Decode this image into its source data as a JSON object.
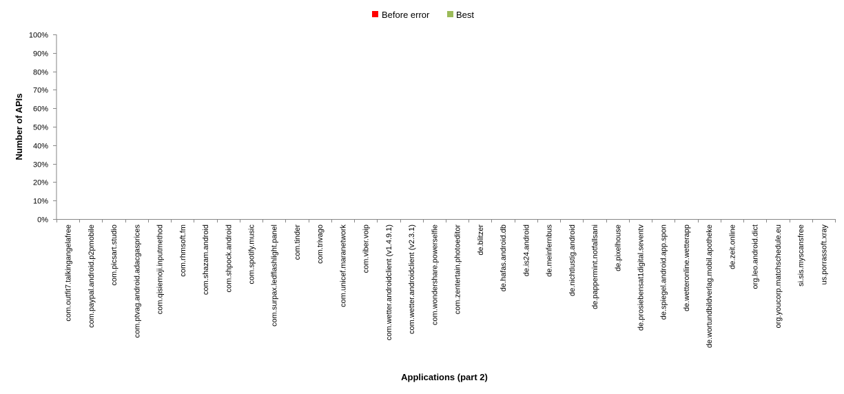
{
  "chart_data": {
    "type": "bar",
    "xlabel": "Applications (part 2)",
    "ylabel": "Number of APIs",
    "ylim": [
      0,
      100
    ],
    "y_ticks": [
      "0%",
      "10%",
      "20%",
      "30%",
      "40%",
      "50%",
      "60%",
      "70%",
      "80%",
      "90%",
      "100%"
    ],
    "legend_position": "top-center",
    "grid": false,
    "categories": [
      "com.outfit7.talkingangelafree",
      "com.paypal.android.p2pmobile",
      "com.picsart.studio",
      "com.ptvag.android.adacgasprices",
      "com.qisiemoji.inputmethod",
      "com.rhmsoft.fm",
      "com.shazam.android",
      "com.shpock.android",
      "com.spotify.music",
      "com.surpax.ledflashlight.panel",
      "com.tinder",
      "com.trivago",
      "com.unicef.maranetwork",
      "com.viber.voip",
      "com.wetter.androidclient (v1.4.9.1)",
      "com.wetter.androidclient (v2.3.1)",
      "com.wondershare.powerselfie",
      "com.zentertain.photoeditor",
      "de.blitzer",
      "de.hafas.android.db",
      "de.is24.android",
      "de.meinfernbus",
      "de.nichtlustig.android",
      "de.pappermint.notfallsani",
      "de.pixelhouse",
      "de.prosiebensat1digital.seventv",
      "de.spiegel.android.app.spon",
      "de.wetteronline.wetterapp",
      "de.wortundbildverlag.mobil.apotheke",
      "de.zeit.online",
      "org.leo.android.dict",
      "org.youcorp.matchschedule.eu",
      "si.sis.myscansfree",
      "us.porrassoft.xray"
    ],
    "series": [
      {
        "name": "Before error",
        "color": "#ff0000",
        "values": [
          0,
          0,
          0,
          0,
          0,
          0,
          0,
          0,
          0,
          0,
          0,
          0,
          0,
          0,
          0,
          0,
          0,
          0,
          0,
          0,
          0,
          0,
          0,
          0,
          0,
          0,
          0,
          0,
          0,
          0,
          0,
          0,
          0,
          0
        ]
      },
      {
        "name": "Best",
        "color": "#9bbb59",
        "values": [
          0,
          0,
          0,
          0,
          0,
          0,
          0,
          0,
          0,
          0,
          0,
          0,
          0,
          0,
          0,
          0,
          0,
          0,
          0,
          0,
          0,
          0,
          0,
          0,
          0,
          0,
          0,
          0,
          0,
          0,
          0,
          0,
          0,
          0
        ]
      }
    ]
  }
}
